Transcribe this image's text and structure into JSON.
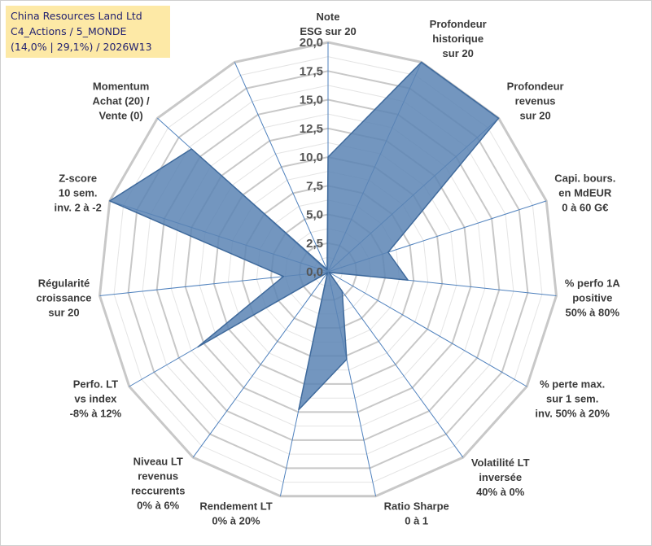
{
  "chart_data": {
    "type": "radar",
    "title_lines": [
      "China Resources Land Ltd",
      "C4_Actions / 5_MONDE",
      "(14,0% | 29,1%) / 2026W13"
    ],
    "rmin": 0,
    "rmax": 20,
    "ticks": [
      "0,0",
      "2,5",
      "5,0",
      "7,5",
      "10,0",
      "12,5",
      "15,0",
      "17,5",
      "20,0"
    ],
    "tick_values": [
      0,
      2.5,
      5,
      7.5,
      10,
      12.5,
      15,
      17.5,
      20
    ],
    "axes": [
      {
        "label": [
          "Note",
          "ESG sur 20"
        ],
        "value": 10
      },
      {
        "label": [
          "Profondeur",
          "historique",
          "sur 20"
        ],
        "value": 20
      },
      {
        "label": [
          "Profondeur",
          "revenus",
          "sur 20"
        ],
        "value": 20
      },
      {
        "label": [
          "Capi. bours.",
          "en MdEUR",
          "0 à 60 G€"
        ],
        "value": 5.5
      },
      {
        "label": [
          "% perfo 1A",
          "positive",
          "50% à 80%"
        ],
        "value": 7
      },
      {
        "label": [
          "% perte max.",
          "sur 1 sem.",
          "inv. 50% à 20%"
        ],
        "value": 0.1
      },
      {
        "label": [
          "Volatilité LT",
          "inversée",
          "40% à 0%"
        ],
        "value": 2.1
      },
      {
        "label": [
          "Ratio Sharpe",
          "0 à 1"
        ],
        "value": 7.8
      },
      {
        "label": [
          "Rendement LT",
          "0% à 20%"
        ],
        "value": 12.3
      },
      {
        "label": [
          "Niveau LT",
          "revenus",
          "reccurents",
          "0% à 6%"
        ],
        "value": 0.1
      },
      {
        "label": [
          "Perfo. LT",
          "vs index",
          "-8% à 12%"
        ],
        "value": 13.1
      },
      {
        "label": [
          "Régularité",
          "croissance",
          "sur 20"
        ],
        "value": 3.9
      },
      {
        "label": [
          "Z-score",
          "10 sem.",
          "inv. 2 à -2"
        ],
        "value": 20
      },
      {
        "label": [
          "Momentum",
          "Achat (20) /",
          "Vente (0)"
        ],
        "value": 16
      },
      {
        "label": [],
        "value": 0.2
      }
    ],
    "colors": {
      "fill": "#5b84b4",
      "fill_opacity": "0.85",
      "stroke": "#3f6a9c",
      "grid": "#c8c8c8",
      "spoke": "#4f81bd"
    }
  }
}
